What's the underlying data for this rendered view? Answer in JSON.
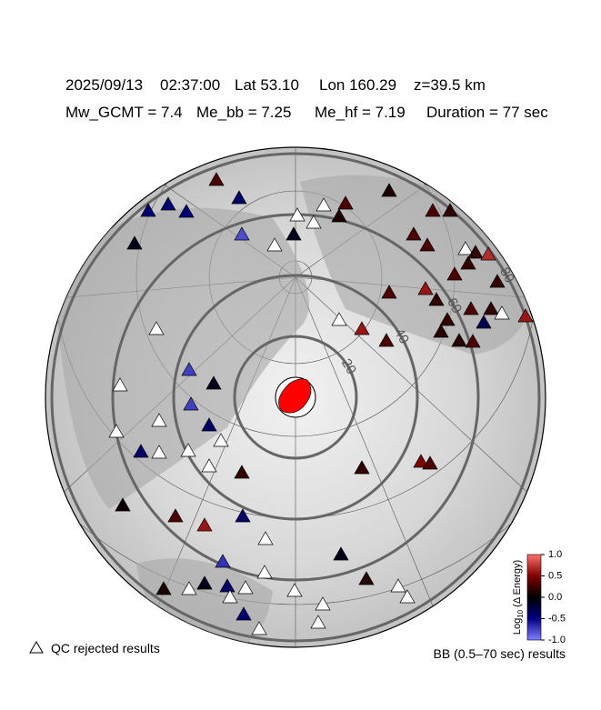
{
  "header": {
    "date": "2025/09/13",
    "time": "02:37:00",
    "lat": "Lat 53.10",
    "lon": "Lon 160.29",
    "depth": "z=39.5 km",
    "mw": "Mw_GCMT = 7.4",
    "me_bb": "Me_bb = 7.25",
    "me_hf": "Me_hf = 7.19",
    "duration": "Duration = 77 sec"
  },
  "distance_rings": [
    20,
    40,
    60,
    80
  ],
  "stations": [
    0.3,
    -0.4,
    -0.45,
    -0.45,
    -0.45,
    -0.1,
    -0.8,
    null,
    -0.1,
    null,
    null,
    null,
    0.1,
    0.3,
    0.1,
    0.3,
    0.2,
    0.3,
    0.3,
    null,
    0.2,
    0.7,
    0.2,
    0.3,
    0.2,
    0.6,
    0.3,
    0.2,
    0.2,
    0.3,
    0.2,
    -0.3,
    null,
    0.6,
    null,
    0.6,
    0.3,
    0.15,
    0.15,
    0.3,
    null,
    -0.75,
    -0.1,
    -0.75,
    null,
    null,
    null,
    -0.4,
    null,
    -0.4,
    null,
    null,
    null,
    0.2,
    0.2,
    0.5,
    0.3,
    0.05,
    0.3,
    0.6,
    -0.4,
    null,
    -0.1,
    -0.7,
    null,
    0.15,
    null,
    null,
    null,
    0.1,
    null,
    -0.1,
    -0.4,
    null,
    null,
    -0.45,
    null,
    null,
    null
  ],
  "colorbar": {
    "label_main": "Log",
    "label_sub": "10",
    "label_rest": " (Δ Energy)",
    "lim": [
      -1,
      1
    ],
    "ticks": [
      {
        "value": 1,
        "label": "1.0"
      },
      {
        "value": 0.5,
        "label": "0.5"
      },
      {
        "value": 0,
        "label": "0.0"
      },
      {
        "value": -0.5,
        "label": "-0.5"
      },
      {
        "value": -1,
        "label": "-1.0"
      }
    ]
  },
  "legend": {
    "qc": "QC rejected results",
    "bb": "BB (0.5–70 sec) results"
  }
}
